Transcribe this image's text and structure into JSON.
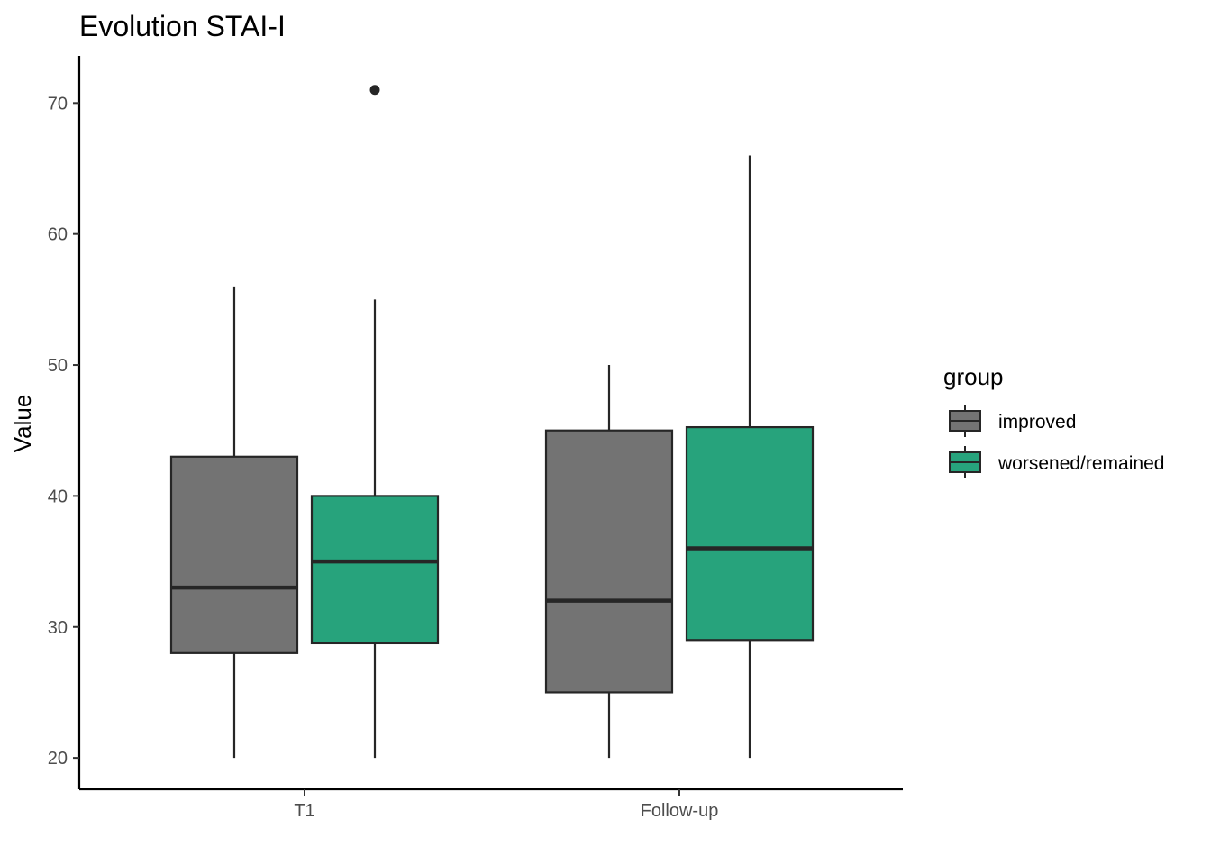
{
  "chart_data": {
    "type": "boxplot",
    "title": "Evolution STAI-I",
    "xlabel": "",
    "ylabel": "Value",
    "ylim": [
      17.6,
      73.6
    ],
    "yticks": [
      20,
      30,
      40,
      50,
      60,
      70
    ],
    "categories": [
      "T1",
      "Follow-up"
    ],
    "legend": {
      "title": "group",
      "placement": "right"
    },
    "grid": false,
    "series": [
      {
        "name": "improved",
        "color": "#737373",
        "boxes": [
          {
            "category": "T1",
            "min": 20,
            "q1": 28,
            "median": 33,
            "q3": 43,
            "max": 56,
            "outliers": []
          },
          {
            "category": "Follow-up",
            "min": 20,
            "q1": 25,
            "median": 32,
            "q3": 45,
            "max": 50,
            "outliers": []
          }
        ]
      },
      {
        "name": "worsened/remained",
        "color": "#27a37c",
        "boxes": [
          {
            "category": "T1",
            "min": 20,
            "q1": 28.75,
            "median": 35,
            "q3": 40,
            "max": 55,
            "outliers": [
              71
            ]
          },
          {
            "category": "Follow-up",
            "min": 20,
            "q1": 29,
            "median": 36,
            "q3": 45.25,
            "max": 66,
            "outliers": []
          }
        ]
      }
    ]
  }
}
